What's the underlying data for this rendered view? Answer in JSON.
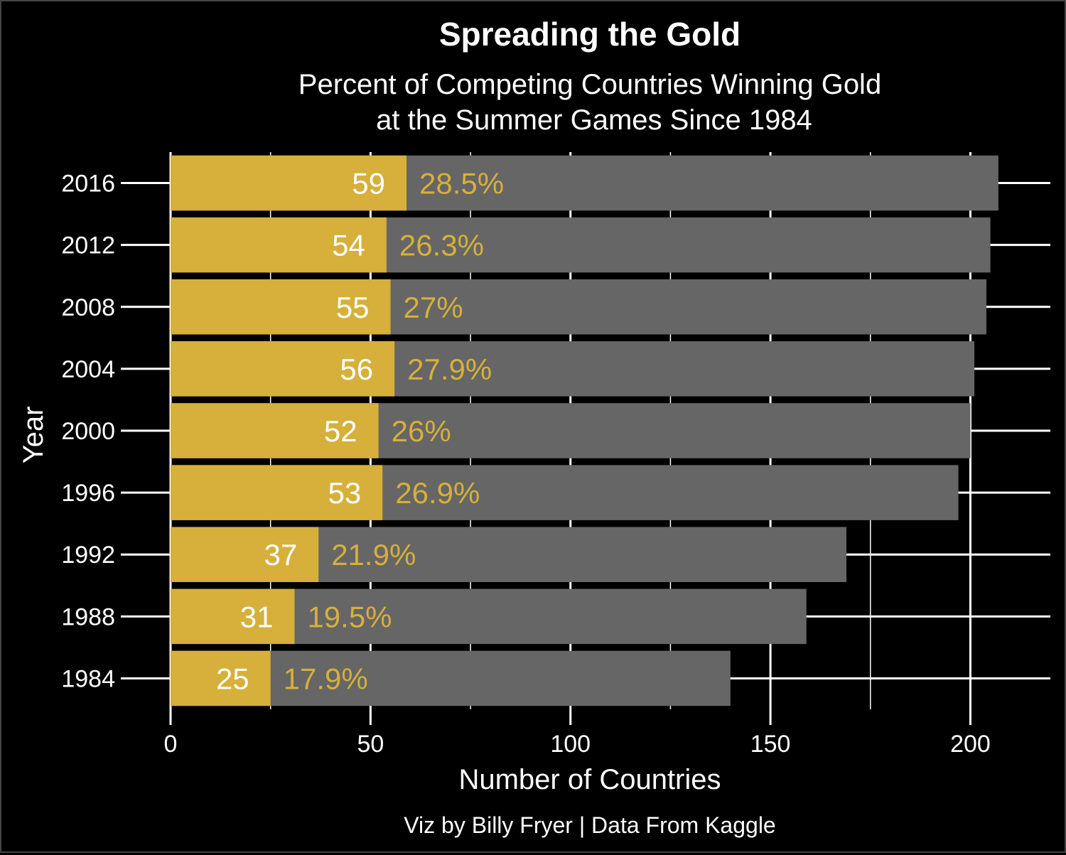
{
  "chart_data": {
    "type": "bar",
    "orientation": "horizontal",
    "stacked": "overlay",
    "title": "Spreading the Gold",
    "subtitle": [
      "Percent of Competing Countries Winning Gold",
      "at the Summer Games Since 1984"
    ],
    "xlabel": "Number of Countries",
    "ylabel": "Year",
    "caption": "Viz by Billy Fryer | Data From Kaggle",
    "xlim": [
      0,
      220
    ],
    "xticks": [
      "0",
      "50",
      "100",
      "150",
      "200"
    ],
    "xtick_values": [
      0,
      50,
      100,
      150,
      200
    ],
    "categories": [
      "2016",
      "2012",
      "2008",
      "2004",
      "2000",
      "1996",
      "1992",
      "1988",
      "1984"
    ],
    "series": [
      {
        "values": [
          207,
          205,
          204,
          201,
          200,
          197,
          169,
          159,
          140
        ],
        "color": "#666666"
      },
      {
        "values": [
          59,
          54,
          55,
          56,
          52,
          53,
          37,
          31,
          25
        ],
        "color": "#D6B03A"
      }
    ],
    "count_labels": [
      "59",
      "54",
      "55",
      "56",
      "52",
      "53",
      "37",
      "31",
      "25"
    ],
    "percent_labels": [
      "28.5%",
      "26.3%",
      "27%",
      "27.9%",
      "26%",
      "26.9%",
      "21.9%",
      "19.5%",
      "17.9%"
    ],
    "colors": {
      "background": "#000000",
      "text": "#FFFFFF",
      "gold": "#D6B03A",
      "grey": "#666666",
      "grid": "#FFFFFF"
    },
    "grid": true
  }
}
